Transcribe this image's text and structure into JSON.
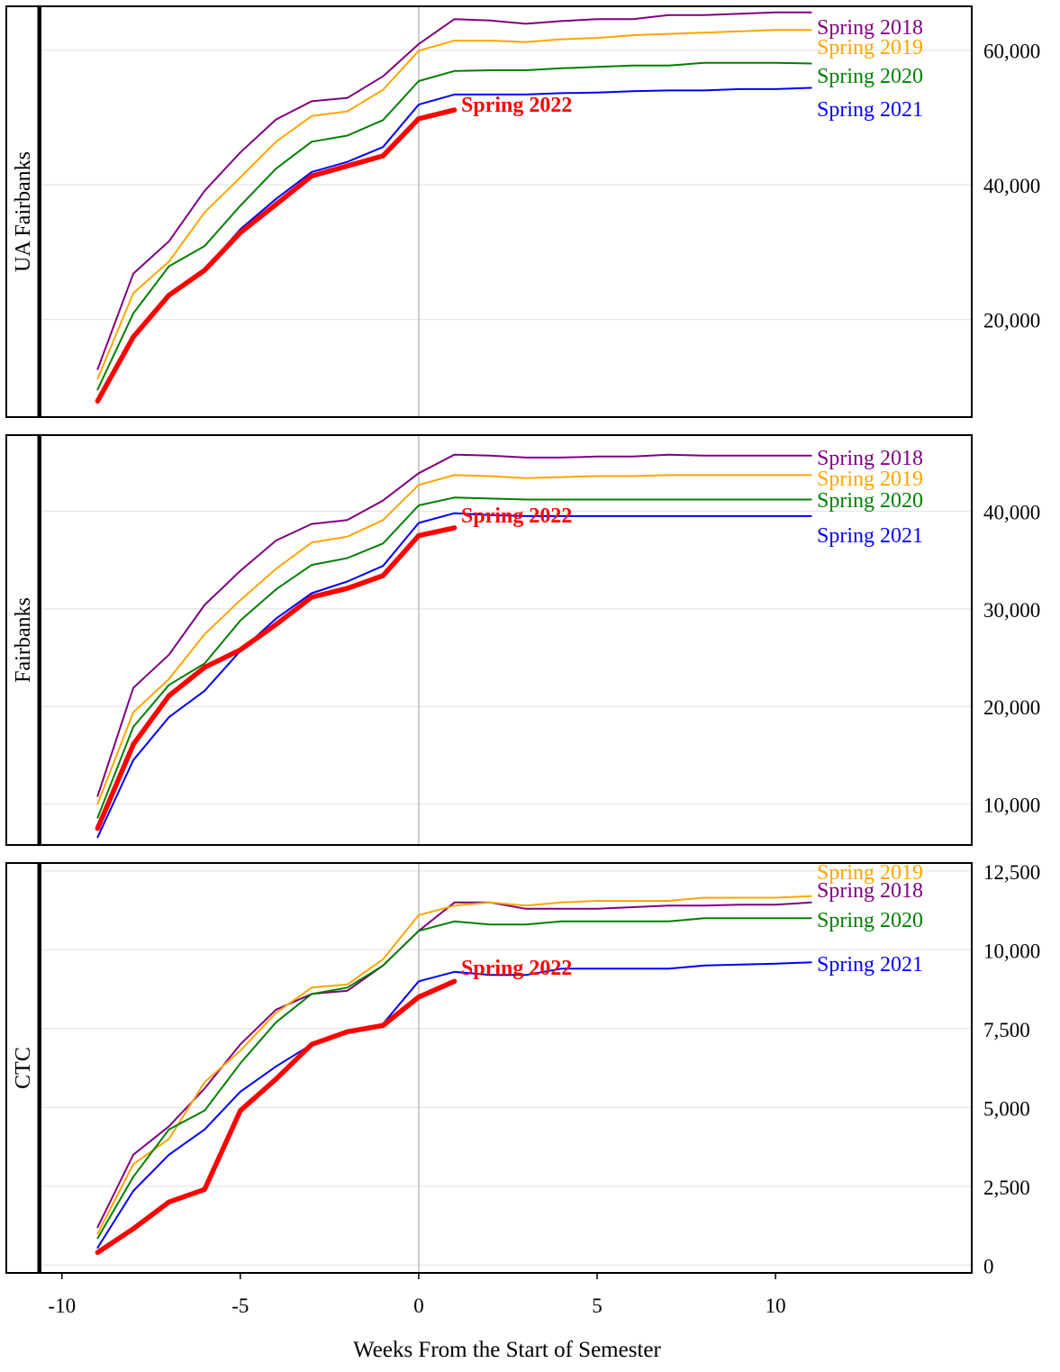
{
  "chart_data": {
    "type": "line",
    "xlabel": "Weeks From the Start of Semester",
    "xlim": [
      -10.6,
      15.5
    ],
    "xticks": [
      -10,
      -5,
      0,
      5,
      10
    ],
    "x_tick_labels": [
      "-10",
      "-5",
      "0",
      "5",
      "10"
    ],
    "vline": 0,
    "grid": true,
    "colors": {
      "Spring 2018": "#800080",
      "Spring 2019": "#FFA500",
      "Spring 2020": "#008000",
      "Spring 2021": "#0000FF",
      "Spring 2022": "#FF0000"
    },
    "panels": [
      {
        "facet_label": "UA Fairbanks",
        "ylim": [
          5500,
          66500
        ],
        "yticks": [
          20000,
          40000,
          60000
        ],
        "y_tick_labels": [
          "20,000",
          "40,000",
          "60,000"
        ],
        "series": [
          {
            "name": "Spring 2018",
            "x": [
              -9,
              -8,
              -7,
              -6,
              -5,
              -4,
              -3,
              -2,
              -1,
              0,
              1,
              2,
              3,
              4,
              5,
              6,
              7,
              8,
              9,
              10,
              11
            ],
            "values": [
              12600,
              26800,
              31600,
              39100,
              44800,
              49700,
              52400,
              52900,
              56100,
              60900,
              64600,
              64400,
              63900,
              64300,
              64600,
              64600,
              65200,
              65200,
              65400,
              65600,
              65600
            ]
          },
          {
            "name": "Spring 2019",
            "x": [
              -9,
              -8,
              -7,
              -6,
              -5,
              -4,
              -3,
              -2,
              -1,
              0,
              1,
              2,
              3,
              4,
              5,
              6,
              7,
              8,
              9,
              10,
              11
            ],
            "values": [
              11200,
              23900,
              28600,
              35900,
              41100,
              46400,
              50200,
              50900,
              54100,
              59900,
              61400,
              61400,
              61200,
              61600,
              61800,
              62200,
              62400,
              62600,
              62800,
              63000,
              63000
            ]
          },
          {
            "name": "Spring 2020",
            "x": [
              -9,
              -8,
              -7,
              -6,
              -5,
              -4,
              -3,
              -2,
              -1,
              0,
              1,
              2,
              3,
              4,
              5,
              6,
              7,
              8,
              9,
              10,
              11
            ],
            "values": [
              9600,
              20900,
              27900,
              30900,
              36900,
              42400,
              46400,
              47300,
              49600,
              55400,
              56900,
              57000,
              57000,
              57300,
              57500,
              57700,
              57700,
              58100,
              58100,
              58100,
              58000
            ]
          },
          {
            "name": "Spring 2021",
            "x": [
              -9,
              -8,
              -7,
              -6,
              -5,
              -4,
              -3,
              -2,
              -1,
              0,
              1,
              2,
              3,
              4,
              5,
              6,
              7,
              8,
              9,
              10,
              11
            ],
            "values": [
              7600,
              17400,
              23600,
              27400,
              33400,
              37900,
              41900,
              43400,
              45600,
              51900,
              53400,
              53400,
              53400,
              53600,
              53700,
              53900,
              54000,
              54000,
              54200,
              54200,
              54400
            ]
          },
          {
            "name": "Spring 2022",
            "x": [
              -9,
              -8,
              -7,
              -6,
              -5,
              -4,
              -3,
              -2,
              -1,
              0,
              1
            ],
            "values": [
              7900,
              17400,
              23600,
              27300,
              32900,
              37100,
              41300,
              42800,
              44300,
              49800,
              51100
            ]
          }
        ],
        "labels": [
          {
            "series": "Spring 2018",
            "text": "Spring 2018"
          },
          {
            "series": "Spring 2019",
            "text": "Spring 2019"
          },
          {
            "series": "Spring 2020",
            "text": "Spring 2020"
          },
          {
            "series": "Spring 2021",
            "text": "Spring 2021"
          },
          {
            "series": "Spring 2022",
            "text": "Spring 2022",
            "bold": true
          }
        ]
      },
      {
        "facet_label": "Fairbanks",
        "ylim": [
          5800,
          47800
        ],
        "yticks": [
          10000,
          20000,
          30000,
          40000
        ],
        "y_tick_labels": [
          "10,000",
          "20,000",
          "30,000",
          "40,000"
        ],
        "series": [
          {
            "name": "Spring 2018",
            "x": [
              -9,
              -8,
              -7,
              -6,
              -5,
              -4,
              -3,
              -2,
              -1,
              0,
              1,
              2,
              3,
              4,
              5,
              6,
              7,
              8,
              9,
              10,
              11
            ],
            "values": [
              10800,
              21900,
              25300,
              30400,
              33900,
              37000,
              38700,
              39100,
              41100,
              43900,
              45800,
              45700,
              45500,
              45500,
              45600,
              45600,
              45800,
              45700,
              45700,
              45700,
              45700
            ]
          },
          {
            "name": "Spring 2019",
            "x": [
              -9,
              -8,
              -7,
              -6,
              -5,
              -4,
              -3,
              -2,
              -1,
              0,
              1,
              2,
              3,
              4,
              5,
              6,
              7,
              8,
              9,
              10,
              11
            ],
            "values": [
              10000,
              19400,
              22800,
              27400,
              30900,
              34100,
              36800,
              37400,
              39100,
              42700,
              43700,
              43600,
              43400,
              43500,
              43600,
              43600,
              43700,
              43700,
              43700,
              43700,
              43700
            ]
          },
          {
            "name": "Spring 2020",
            "x": [
              -9,
              -8,
              -7,
              -6,
              -5,
              -4,
              -3,
              -2,
              -1,
              0,
              1,
              2,
              3,
              4,
              5,
              6,
              7,
              8,
              9,
              10,
              11
            ],
            "values": [
              8600,
              17900,
              22200,
              24400,
              28800,
              32000,
              34500,
              35200,
              36700,
              40600,
              41400,
              41300,
              41200,
              41200,
              41200,
              41200,
              41200,
              41200,
              41200,
              41200,
              41200
            ]
          },
          {
            "name": "Spring 2021",
            "x": [
              -9,
              -8,
              -7,
              -6,
              -5,
              -4,
              -3,
              -2,
              -1,
              0,
              1,
              2,
              3,
              4,
              5,
              6,
              7,
              8,
              9,
              10,
              11
            ],
            "values": [
              6600,
              14500,
              18900,
              21600,
              25700,
              29000,
              31600,
              32800,
              34400,
              38800,
              39800,
              39600,
              39500,
              39500,
              39500,
              39500,
              39500,
              39500,
              39500,
              39500,
              39500
            ]
          },
          {
            "name": "Spring 2022",
            "x": [
              -9,
              -8,
              -7,
              -6,
              -5,
              -4,
              -3,
              -2,
              -1,
              0,
              1
            ],
            "values": [
              7500,
              16100,
              21100,
              24000,
              25800,
              28400,
              31200,
              32100,
              33400,
              37500,
              38300
            ]
          }
        ],
        "labels": [
          {
            "series": "Spring 2018",
            "text": "Spring 2018"
          },
          {
            "series": "Spring 2019",
            "text": "Spring 2019"
          },
          {
            "series": "Spring 2020",
            "text": "Spring 2020"
          },
          {
            "series": "Spring 2021",
            "text": "Spring 2021"
          },
          {
            "series": "Spring 2022",
            "text": "Spring 2022",
            "bold": true
          }
        ]
      },
      {
        "facet_label": "CTC",
        "ylim": [
          -250,
          12750
        ],
        "yticks": [
          0,
          2500,
          5000,
          7500,
          10000,
          12500
        ],
        "y_tick_labels": [
          "0",
          "2,500",
          "5,000",
          "7,500",
          "10,000",
          "12,500"
        ],
        "series": [
          {
            "name": "Spring 2018",
            "x": [
              -9,
              -8,
              -7,
              -6,
              -5,
              -4,
              -3,
              -2,
              -1,
              0,
              1,
              2,
              3,
              4,
              5,
              6,
              7,
              8,
              9,
              10,
              11
            ],
            "values": [
              1200,
              3500,
              4400,
              5600,
              7000,
              8100,
              8600,
              8700,
              9500,
              10600,
              11500,
              11500,
              11300,
              11300,
              11300,
              11350,
              11400,
              11400,
              11430,
              11430,
              11500
            ]
          },
          {
            "name": "Spring 2019",
            "x": [
              -9,
              -8,
              -7,
              -6,
              -5,
              -4,
              -3,
              -2,
              -1,
              0,
              1,
              2,
              3,
              4,
              5,
              6,
              7,
              8,
              9,
              10,
              11
            ],
            "values": [
              1000,
              3200,
              4000,
              5800,
              6800,
              8000,
              8800,
              8900,
              9700,
              11100,
              11400,
              11500,
              11400,
              11500,
              11550,
              11550,
              11550,
              11650,
              11650,
              11650,
              11700
            ]
          },
          {
            "name": "Spring 2020",
            "x": [
              -9,
              -8,
              -7,
              -6,
              -5,
              -4,
              -3,
              -2,
              -1,
              0,
              1,
              2,
              3,
              4,
              5,
              6,
              7,
              8,
              9,
              10,
              11
            ],
            "values": [
              850,
              2800,
              4300,
              4900,
              6400,
              7700,
              8600,
              8800,
              9500,
              10600,
              10900,
              10800,
              10800,
              10900,
              10900,
              10900,
              10900,
              11000,
              11000,
              11000,
              11000
            ]
          },
          {
            "name": "Spring 2021",
            "x": [
              -9,
              -8,
              -7,
              -6,
              -5,
              -4,
              -3,
              -2,
              -1,
              0,
              1,
              2,
              3,
              4,
              5,
              6,
              7,
              8,
              9,
              10,
              11
            ],
            "values": [
              550,
              2350,
              3500,
              4300,
              5500,
              6300,
              7000,
              7400,
              7650,
              9000,
              9300,
              9200,
              9200,
              9400,
              9400,
              9400,
              9400,
              9500,
              9530,
              9560,
              9600
            ]
          },
          {
            "name": "Spring 2022",
            "x": [
              -9,
              -8,
              -7,
              -6,
              -5,
              -4,
              -3,
              -2,
              -1,
              0,
              1
            ],
            "values": [
              400,
              1150,
              2000,
              2400,
              4900,
              5900,
              7000,
              7400,
              7600,
              8500,
              9000
            ]
          }
        ],
        "labels": [
          {
            "series": "Spring 2019",
            "text": "Spring 2019"
          },
          {
            "series": "Spring 2018",
            "text": "Spring 2018"
          },
          {
            "series": "Spring 2020",
            "text": "Spring 2020"
          },
          {
            "series": "Spring 2021",
            "text": "Spring 2021"
          },
          {
            "series": "Spring 2022",
            "text": "Spring 2022",
            "bold": true
          }
        ]
      }
    ]
  }
}
